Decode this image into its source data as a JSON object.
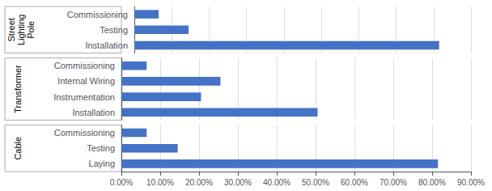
{
  "chart_data": {
    "type": "bar",
    "orientation": "horizontal",
    "categories": [
      "Commissioning",
      "Testing",
      "Installation",
      "Commissioning",
      "Internal Wiring",
      "Instrumentation",
      "Installation",
      "Commissioning",
      "Testing",
      "Laying"
    ],
    "values": [
      0.065,
      0.145,
      0.815,
      0.065,
      0.255,
      0.205,
      0.505,
      0.065,
      0.145,
      0.815
    ],
    "color": "#4472C4",
    "groups": [
      {
        "label": "Street\nLighting\nPole",
        "size": 3
      },
      {
        "label": "Transformer",
        "size": 4
      },
      {
        "label": "Cable",
        "size": 3
      }
    ],
    "xlim": [
      0,
      0.9
    ],
    "xticks": [
      {
        "value": 0.0,
        "label": "0.00%"
      },
      {
        "value": 0.1,
        "label": "10.00%"
      },
      {
        "value": 0.2,
        "label": "20.00%"
      },
      {
        "value": 0.3,
        "label": "30.00%"
      },
      {
        "value": 0.4,
        "label": "40.00%"
      },
      {
        "value": 0.5,
        "label": "50.00%"
      },
      {
        "value": 0.6,
        "label": "60.00%"
      },
      {
        "value": 0.7,
        "label": "70.00%"
      },
      {
        "value": 0.8,
        "label": "80.00%"
      },
      {
        "value": 0.9,
        "label": "90.00%"
      }
    ],
    "grid": true
  }
}
